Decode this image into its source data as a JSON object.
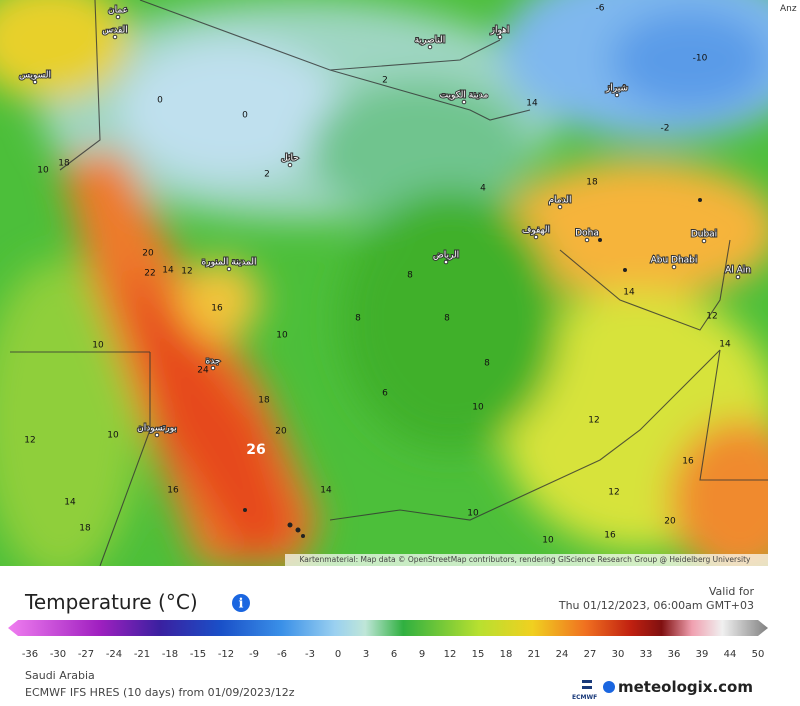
{
  "header": {
    "corner_text": "Anz"
  },
  "map": {
    "attribution": "Kartenmaterial: Map data © OpenStreetMap contributors, rendering GIScience Research Group @ Heidelberg University",
    "place_labels": [
      "Doha",
      "Dubai",
      "Abu Dhabi",
      "Al Ain",
      "الرياض",
      "مدينة الكويت",
      "الناصرية",
      "اهواز",
      "شيراز",
      "المدينة المنورة",
      "جدة",
      "بورتسودان",
      "حائل",
      "الدمام",
      "الهفوف",
      "عمان",
      "القدس",
      "السويس"
    ],
    "temperature_labels": [
      26,
      24,
      22,
      20,
      18,
      16,
      14,
      12,
      10,
      10,
      8,
      8,
      8,
      8,
      10,
      12,
      16,
      14,
      12,
      14,
      18,
      14,
      4,
      2,
      2,
      0,
      0,
      -2,
      -6,
      -10,
      12,
      14,
      18,
      16,
      10,
      10,
      20,
      18,
      6,
      14,
      10,
      12,
      20,
      16,
      10
    ]
  },
  "legend": {
    "title": "Temperature (°C)",
    "valid_for": "Valid for",
    "valid_time": "Thu 01/12/2023, 06:00am GMT+03",
    "ticks": [
      -36,
      -30,
      -27,
      -24,
      -21,
      -18,
      -15,
      -12,
      -9,
      -6,
      -3,
      0,
      3,
      6,
      9,
      12,
      15,
      18,
      21,
      24,
      27,
      30,
      33,
      36,
      39,
      44,
      50
    ]
  },
  "footer": {
    "region": "Saudi Arabia",
    "model": "ECMWF IFS HRES (10 days) from 01/09/2023/12z",
    "logo_small": "ECMWF",
    "logo": "meteologix.com"
  }
}
